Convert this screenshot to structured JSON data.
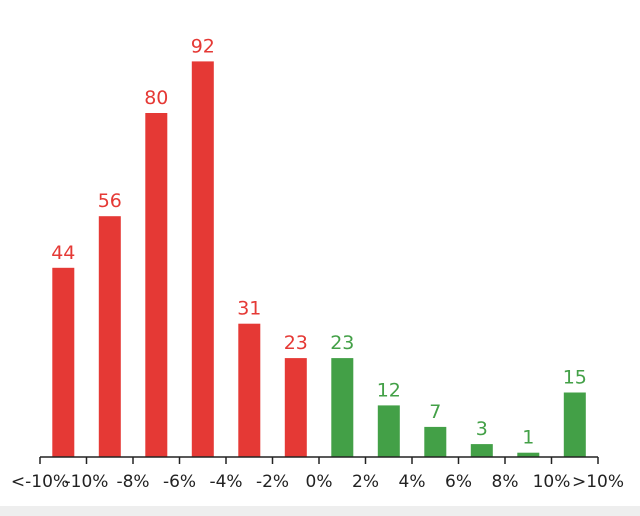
{
  "chart_data": {
    "type": "bar",
    "title": "",
    "xlabel": "",
    "ylabel": "",
    "tick_labels": [
      "<-10%",
      "-10%",
      "-8%",
      "-6%",
      "-4%",
      "-2%",
      "0%",
      "2%",
      "4%",
      "6%",
      "8%",
      "10%",
      ">10%"
    ],
    "categories": [
      "<-10%",
      "-10% to -8%",
      "-8% to -6%",
      "-6% to -4%",
      "-4% to -2%",
      "-2% to 0%",
      "0% to 2%",
      "2% to 4%",
      "4% to 6%",
      "6% to 8%",
      "8% to 10%",
      ">10%"
    ],
    "values": [
      44,
      56,
      80,
      92,
      31,
      23,
      23,
      12,
      7,
      3,
      1,
      15
    ],
    "ylim": [
      0,
      100
    ],
    "grid": false,
    "legend": "none",
    "colors": {
      "negative": "#e53935",
      "positive": "#43a047",
      "axis": "#222222"
    },
    "bar_colors": [
      "negative",
      "negative",
      "negative",
      "negative",
      "negative",
      "negative",
      "positive",
      "positive",
      "positive",
      "positive",
      "positive",
      "positive"
    ]
  }
}
